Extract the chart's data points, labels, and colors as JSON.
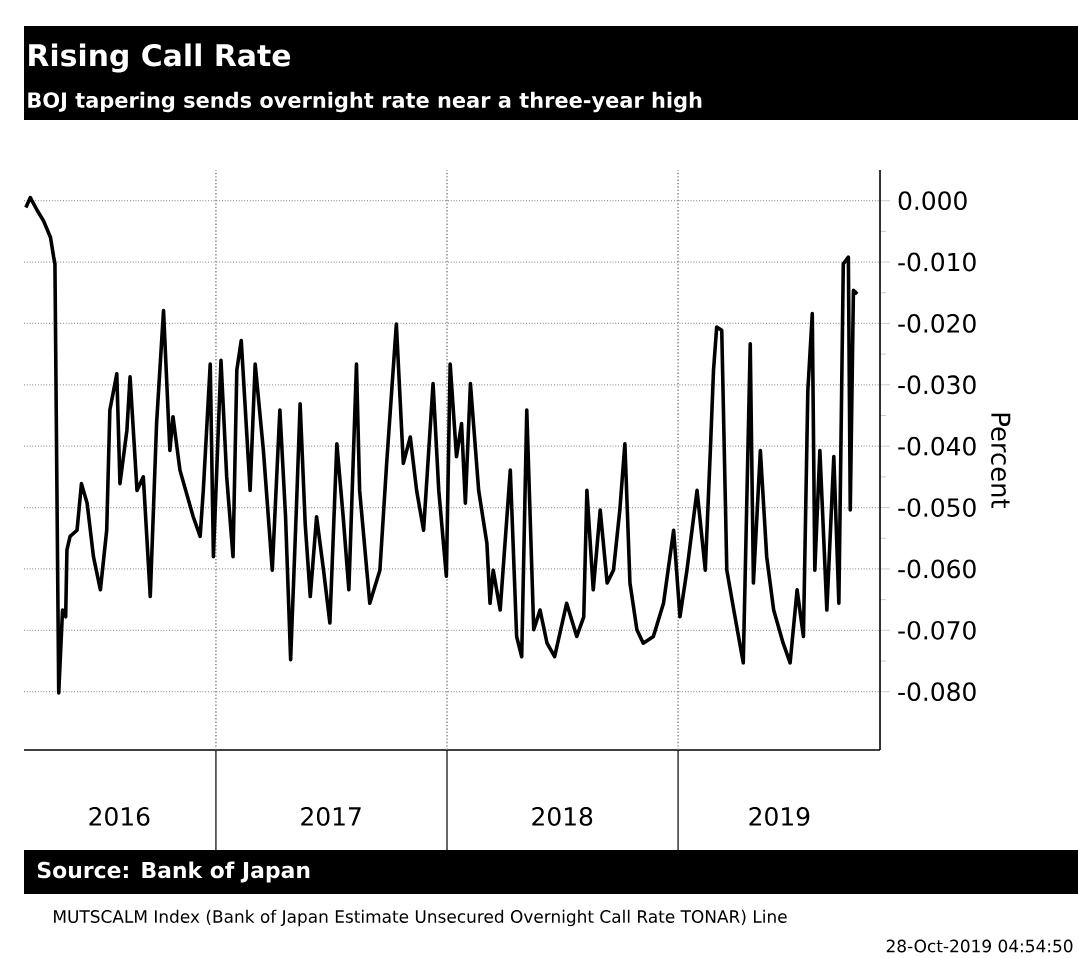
{
  "chart_data": {
    "type": "line",
    "title": "Rising Call Rate",
    "subtitle": "BOJ tapering sends overnight rate near a three-year high",
    "ylabel": "Percent",
    "annotations": [
      "Source: Bank of Japan",
      "MUTSCALM Index (Bank of Japan Estimate Unsecured Overnight Call Rate TONAR) Line",
      "28-Oct-2019 04:54:50"
    ],
    "xlim": [
      "2016-03-03",
      "2019-11-16"
    ],
    "ylim": [
      -0.0895,
      0.005
    ],
    "xticks": [
      {
        "value": "2016-08-01",
        "label": "2016"
      },
      {
        "value": "2017-07-02",
        "label": "2017"
      },
      {
        "value": "2018-07-02",
        "label": "2018"
      },
      {
        "value": "2019-06-10",
        "label": "2019"
      }
    ],
    "yticks": [
      {
        "value": 0,
        "label": "0.000"
      },
      {
        "value": -0.01,
        "label": "-0.010"
      },
      {
        "value": -0.02,
        "label": "-0.020"
      },
      {
        "value": -0.03,
        "label": "-0.030"
      },
      {
        "value": -0.04,
        "label": "-0.040"
      },
      {
        "value": -0.05,
        "label": "-0.050"
      },
      {
        "value": -0.06,
        "label": "-0.060"
      },
      {
        "value": -0.07,
        "label": "-0.070"
      },
      {
        "value": -0.08,
        "label": "-0.080"
      }
    ],
    "grid": "y",
    "marker": "none",
    "line_style": "solid",
    "ref_lines": [
      {
        "axis": "x",
        "value": "2017-01-01",
        "line_style": "dotted",
        "color": "#808080"
      },
      {
        "axis": "x",
        "value": "2018-01-01",
        "line_style": "dotted",
        "color": "#808080"
      },
      {
        "axis": "x",
        "value": "2019-01-01",
        "line_style": "dotted",
        "color": "#808080"
      }
    ],
    "series": [
      {
        "color": "#000000",
        "x": [
          "2016-03-06",
          "2016-03-13",
          "2016-03-24",
          "2016-04-03",
          "2016-04-14",
          "2016-04-19",
          "2016-04-21",
          "2016-04-27",
          "2016-05-03",
          "2016-05-08",
          "2016-05-10",
          "2016-05-15",
          "2016-05-26",
          "2016-06-02",
          "2016-06-11",
          "2016-06-21",
          "2016-07-02",
          "2016-07-12",
          "2016-07-17",
          "2016-07-28",
          "2016-08-02",
          "2016-08-13",
          "2016-08-18",
          "2016-08-29",
          "2016-09-08",
          "2016-09-19",
          "2016-09-29",
          "2016-10-10",
          "2016-10-20",
          "2016-10-25",
          "2016-11-05",
          "2016-11-26",
          "2016-12-07",
          "2016-12-12",
          "2016-12-23",
          "2016-12-28",
          "2017-01-09",
          "2017-01-18",
          "2017-01-28",
          "2017-02-03",
          "2017-02-10",
          "2017-02-24",
          "2017-03-04",
          "2017-03-17",
          "2017-03-31",
          "2017-04-12",
          "2017-04-21",
          "2017-04-29",
          "2017-05-08",
          "2017-05-14",
          "2017-05-22",
          "2017-05-30",
          "2017-06-09",
          "2017-06-20",
          "2017-06-30",
          "2017-07-11",
          "2017-07-21",
          "2017-07-30",
          "2017-08-11",
          "2017-08-16",
          "2017-09-01",
          "2017-09-17",
          "2017-09-28",
          "2017-10-13",
          "2017-10-24",
          "2017-11-04",
          "2017-11-14",
          "2017-11-25",
          "2017-12-10",
          "2017-12-19",
          "2017-12-31",
          "2018-01-06",
          "2018-01-16",
          "2018-01-24",
          "2018-01-30",
          "2018-02-07",
          "2018-02-20",
          "2018-03-05",
          "2018-03-10",
          "2018-03-15",
          "2018-03-26",
          "2018-04-11",
          "2018-04-21",
          "2018-04-29",
          "2018-05-07",
          "2018-05-18",
          "2018-05-28",
          "2018-06-08",
          "2018-06-20",
          "2018-07-09",
          "2018-07-25",
          "2018-08-05",
          "2018-08-10",
          "2018-08-20",
          "2018-08-31",
          "2018-09-11",
          "2018-09-21",
          "2018-10-01",
          "2018-10-09",
          "2018-10-17",
          "2018-10-28",
          "2018-11-07",
          "2018-11-23",
          "2018-12-09",
          "2018-12-25",
          "2019-01-04",
          "2019-01-15",
          "2019-01-31",
          "2019-02-13",
          "2019-02-21",
          "2019-02-26",
          "2019-03-03",
          "2019-03-11",
          "2019-03-19",
          "2019-03-30",
          "2019-04-14",
          "2019-04-25",
          "2019-04-30",
          "2019-05-11",
          "2019-05-21",
          "2019-06-01",
          "2019-06-16",
          "2019-06-27",
          "2019-07-08",
          "2019-07-18",
          "2019-07-25",
          "2019-08-01",
          "2019-08-05",
          "2019-08-13",
          "2019-08-24",
          "2019-09-04",
          "2019-09-12",
          "2019-09-19",
          "2019-09-27",
          "2019-09-30",
          "2019-10-05",
          "2019-10-11"
        ],
        "values": [
          -0.0011,
          0.0005,
          -0.0016,
          -0.0033,
          -0.006,
          -0.0092,
          -0.0103,
          -0.0802,
          -0.0667,
          -0.0678,
          -0.0569,
          -0.0547,
          -0.0537,
          -0.0461,
          -0.0493,
          -0.058,
          -0.0634,
          -0.0537,
          -0.0341,
          -0.0282,
          -0.0461,
          -0.0374,
          -0.0287,
          -0.0472,
          -0.045,
          -0.0645,
          -0.0363,
          -0.0179,
          -0.0407,
          -0.0352,
          -0.0439,
          -0.0515,
          -0.0547,
          -0.0472,
          -0.0266,
          -0.058,
          -0.026,
          -0.045,
          -0.058,
          -0.0276,
          -0.0228,
          -0.0472,
          -0.0266,
          -0.0407,
          -0.0602,
          -0.0341,
          -0.0515,
          -0.0748,
          -0.0504,
          -0.0331,
          -0.0526,
          -0.0645,
          -0.0515,
          -0.0602,
          -0.0688,
          -0.0396,
          -0.0515,
          -0.0634,
          -0.0266,
          -0.0472,
          -0.0656,
          -0.0602,
          -0.0423,
          -0.0201,
          -0.0428,
          -0.0385,
          -0.0472,
          -0.0537,
          -0.0298,
          -0.0472,
          -0.0612,
          -0.0266,
          -0.0417,
          -0.0363,
          -0.0493,
          -0.0298,
          -0.0472,
          -0.0558,
          -0.0656,
          -0.0602,
          -0.0667,
          -0.0439,
          -0.071,
          -0.0743,
          -0.0341,
          -0.0699,
          -0.0667,
          -0.0721,
          -0.0743,
          -0.0656,
          -0.071,
          -0.0678,
          -0.0472,
          -0.0634,
          -0.0504,
          -0.0623,
          -0.0602,
          -0.0504,
          -0.0396,
          -0.0623,
          -0.0699,
          -0.0721,
          -0.071,
          -0.0656,
          -0.0537,
          -0.0678,
          -0.0602,
          -0.0472,
          -0.0602,
          -0.0407,
          -0.0276,
          -0.0206,
          -0.0211,
          -0.0602,
          -0.0667,
          -0.0753,
          -0.0233,
          -0.0623,
          -0.0407,
          -0.058,
          -0.0667,
          -0.0721,
          -0.0753,
          -0.0634,
          -0.071,
          -0.0309,
          -0.0184,
          -0.0602,
          -0.0407,
          -0.0667,
          -0.0417,
          -0.0656,
          -0.0103,
          -0.0092,
          -0.0504,
          -0.0146,
          -0.0152
        ]
      }
    ]
  }
}
